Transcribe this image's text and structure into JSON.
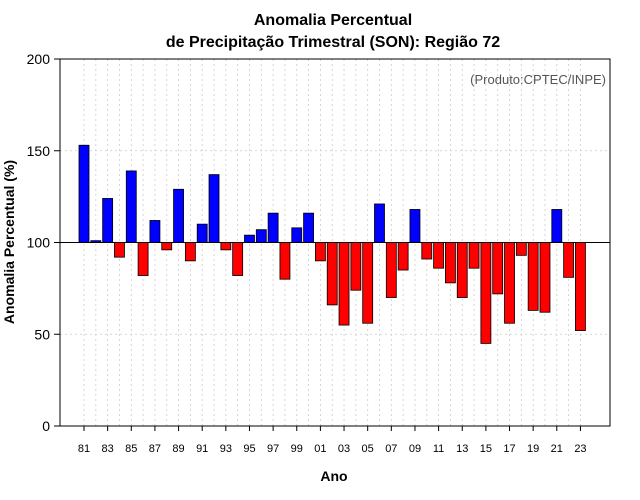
{
  "chart_data": {
    "type": "bar",
    "title": "Anomalia Percentual",
    "subtitle": "de Precipitação Trimestral (SON): Região 72",
    "xlabel": "Ano",
    "ylabel": "Anomalia Percentual (%)",
    "credit": "(Produto:CPTEC/INPE)",
    "baseline": 100,
    "ylim": [
      0,
      200
    ],
    "yticks": [
      0,
      50,
      100,
      150,
      200
    ],
    "grid": true,
    "colors": {
      "above": "#0000ff",
      "below": "#ff0000",
      "outline": "#000000",
      "grid": "#cccccc"
    },
    "categories": [
      "1981",
      "1982",
      "1983",
      "1984",
      "1985",
      "1986",
      "1987",
      "1988",
      "1989",
      "1990",
      "1991",
      "1992",
      "1993",
      "1994",
      "1995",
      "1996",
      "1997",
      "1998",
      "1999",
      "2000",
      "2001",
      "2002",
      "2003",
      "2004",
      "2005",
      "2006",
      "2007",
      "2008",
      "2009",
      "2010",
      "2011",
      "2012",
      "2013",
      "2014",
      "2015",
      "2016",
      "2017",
      "2018",
      "2019",
      "2020",
      "2021",
      "2022",
      "2023"
    ],
    "xtick_labels": [
      "81",
      "83",
      "85",
      "87",
      "89",
      "91",
      "93",
      "95",
      "97",
      "99",
      "01",
      "03",
      "05",
      "07",
      "09",
      "11",
      "13",
      "15",
      "17",
      "19",
      "21",
      "23"
    ],
    "values": [
      153,
      101,
      124,
      92,
      139,
      82,
      112,
      96,
      129,
      90,
      110,
      137,
      96,
      82,
      104,
      107,
      116,
      80,
      108,
      116,
      90,
      66,
      55,
      74,
      56,
      121,
      70,
      85,
      118,
      91,
      86,
      78,
      70,
      86,
      45,
      72,
      56,
      93,
      63,
      62,
      118,
      81,
      52
    ]
  }
}
